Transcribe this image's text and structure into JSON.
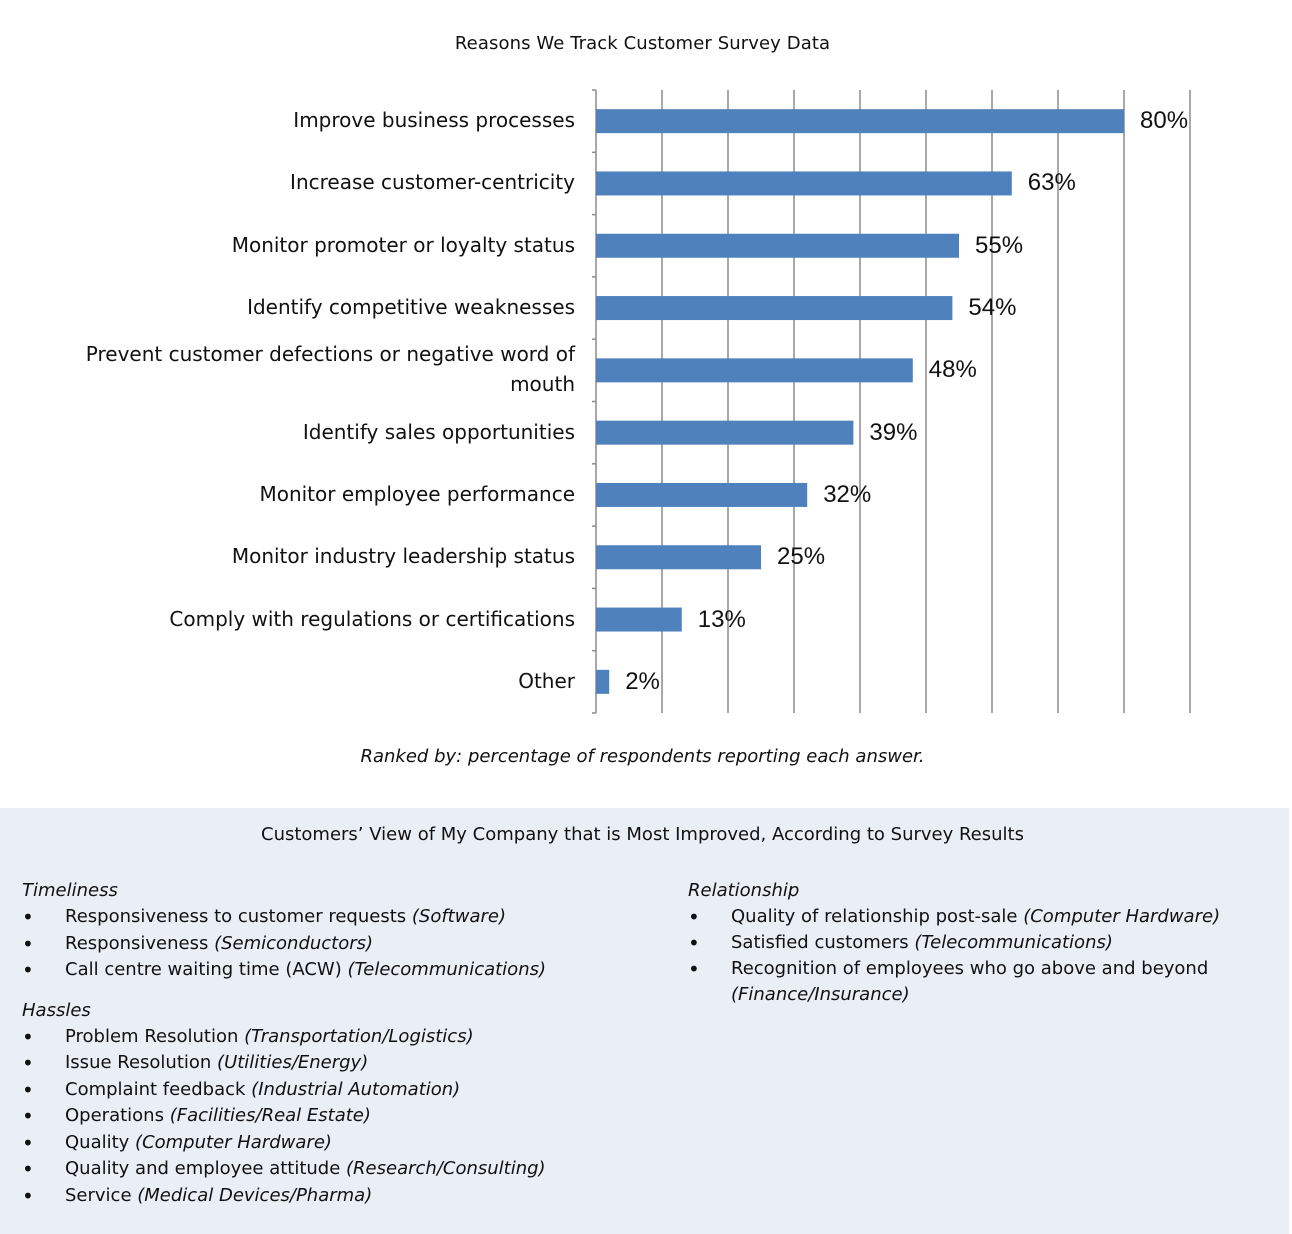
{
  "chart_data": {
    "type": "bar",
    "orientation": "horizontal",
    "title": "Reasons We Track Customer Survey Data",
    "categories": [
      "Improve business processes",
      "Increase customer-centricity",
      "Monitor promoter or loyalty status",
      "Identify competitive weaknesses",
      "Prevent customer defections or negative word of mouth",
      "Identify sales opportunities",
      "Monitor employee performance",
      "Monitor industry leadership status",
      "Comply with regulations or certifications",
      "Other"
    ],
    "values": [
      80,
      63,
      55,
      54,
      48,
      39,
      32,
      25,
      13,
      2
    ],
    "value_labels": [
      "80%",
      "63%",
      "55%",
      "54%",
      "48%",
      "39%",
      "32%",
      "25%",
      "13%",
      "2%"
    ],
    "xlim": [
      0,
      90
    ],
    "grid": "vertical",
    "bar_color": "#4f81bd",
    "note": "Ranked by: percentage of respondents reporting each answer."
  },
  "panel": {
    "title": "Customers’ View of My Company that is Most Improved, According to Survey Results",
    "left_groups": [
      {
        "heading": "Timeliness",
        "items": [
          {
            "text": "Responsiveness to customer requests",
            "industry": "(Software)"
          },
          {
            "text": "Responsiveness",
            "industry": "(Semiconductors)"
          },
          {
            "text": "Call centre waiting time (ACW)",
            "industry": "(Telecommunications)"
          }
        ]
      },
      {
        "heading": "Hassles",
        "items": [
          {
            "text": "Problem Resolution",
            "industry": "(Transportation/Logistics)"
          },
          {
            "text": "Issue Resolution",
            "industry": "(Utilities/Energy)"
          },
          {
            "text": "Complaint feedback",
            "industry": "(Industrial Automation)"
          },
          {
            "text": "Operations",
            "industry": "(Facilities/Real Estate)"
          },
          {
            "text": "Quality",
            "industry": "(Computer Hardware)"
          },
          {
            "text": "Quality and employee attitude",
            "industry": "(Research/Consulting)"
          },
          {
            "text": "Service",
            "industry": "(Medical Devices/Pharma)"
          }
        ]
      }
    ],
    "right_groups": [
      {
        "heading": "Relationship",
        "items": [
          {
            "text": "Quality of relationship post-sale",
            "industry": "(Computer Hardware)"
          },
          {
            "text": "Satisfied customers",
            "industry": "(Telecommunications)"
          },
          {
            "text": "Recognition of employees who go above and beyond",
            "industry": "(Finance/Insurance)"
          }
        ]
      }
    ]
  }
}
